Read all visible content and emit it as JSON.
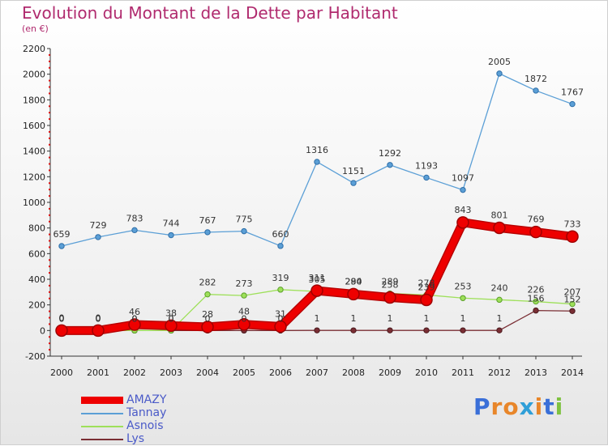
{
  "title": "Evolution du Montant de la Dette par Habitant",
  "subtitle": "(en €)",
  "brand": {
    "text": "Proxiti",
    "letters": [
      "P",
      "r",
      "o",
      "x",
      "i",
      "t",
      "i"
    ],
    "colors": [
      "#3a6fd8",
      "#e8862a",
      "#e8862a",
      "#2f9fd8",
      "#e8862a",
      "#3a6fd8",
      "#7fc241"
    ]
  },
  "chart_data": {
    "type": "line",
    "title": "Evolution du Montant de la Dette par Habitant",
    "subtitle": "(en €)",
    "xlabel": "",
    "ylabel": "",
    "categories": [
      "2000",
      "2001",
      "2002",
      "2003",
      "2004",
      "2005",
      "2006",
      "2007",
      "2008",
      "2009",
      "2010",
      "2011",
      "2012",
      "2013",
      "2014"
    ],
    "ylim": [
      -200,
      2200
    ],
    "yticks": [
      "-200",
      "0",
      "200",
      "400",
      "600",
      "800",
      "1000",
      "1200",
      "1400",
      "1600",
      "1800",
      "2000",
      "2200"
    ],
    "grid": false,
    "legend_position": "bottom-left",
    "series": [
      {
        "name": "AMAZY",
        "color": "#ee0000",
        "values": [
          0,
          0,
          46,
          38,
          28,
          48,
          31,
          311,
          284,
          258,
          239,
          843,
          801,
          769,
          733
        ],
        "labels": [
          "0",
          "0",
          "46",
          "38",
          "28",
          "48",
          "31",
          "311",
          "284",
          "258",
          "239",
          "843",
          "801",
          "769",
          "733"
        ]
      },
      {
        "name": "Tannay",
        "color": "#5b9fd6",
        "values": [
          659,
          729,
          783,
          744,
          767,
          775,
          660,
          1316,
          1151,
          1292,
          1193,
          1097,
          2005,
          1872,
          1767
        ],
        "labels": [
          "659",
          "729",
          "783",
          "744",
          "767",
          "775",
          "660",
          "1316",
          "1151",
          "1292",
          "1193",
          "1097",
          "2005",
          "1872",
          "1767"
        ]
      },
      {
        "name": "Asnois",
        "color": "#9ee05a",
        "values": [
          0,
          0,
          0,
          0,
          282,
          273,
          319,
          305,
          290,
          289,
          278,
          253,
          240,
          226,
          207
        ],
        "labels": [
          "0",
          "0",
          "0",
          "0",
          "282",
          "273",
          "319",
          "305",
          "290",
          "289",
          "278",
          "253",
          "240",
          "226",
          "207"
        ]
      },
      {
        "name": "Lys",
        "color": "#7a2e34",
        "values": [
          0,
          0,
          0,
          0,
          0,
          0,
          0,
          1,
          1,
          1,
          1,
          1,
          1,
          156,
          152
        ],
        "labels": [
          "0",
          "0",
          "0",
          "0",
          "0",
          "0",
          "0",
          "1",
          "1",
          "1",
          "1",
          "1",
          "1",
          "156",
          "152"
        ]
      }
    ]
  }
}
